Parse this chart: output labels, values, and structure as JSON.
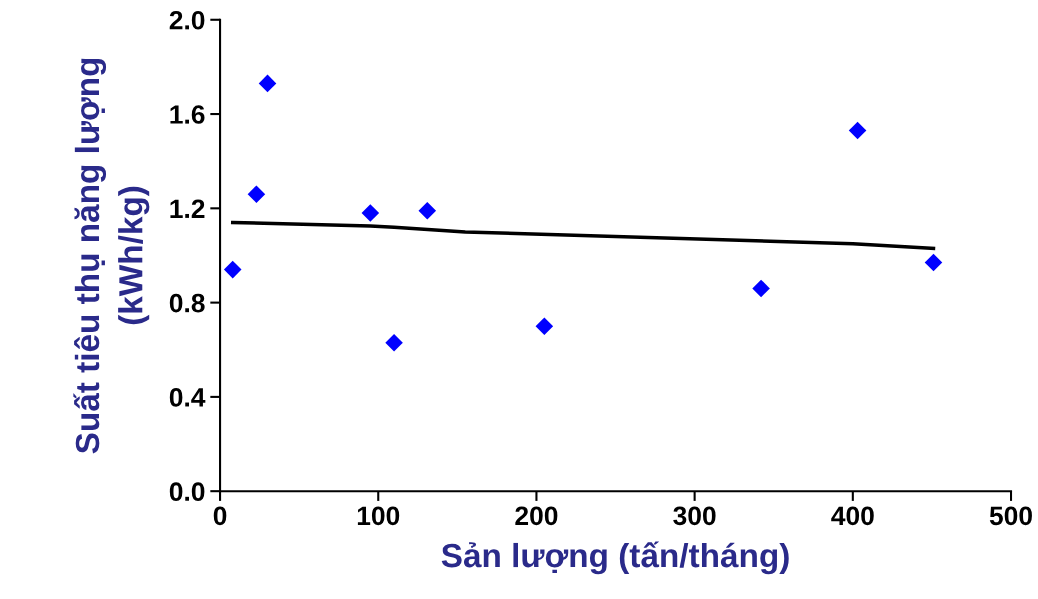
{
  "chart_data": {
    "type": "scatter",
    "xlabel": "Sản lượng (tấn/tháng)",
    "ylabel": "Suất tiêu thụ năng lượng\n(kWh/kg)",
    "series": [
      {
        "color": "#0000ff",
        "marker": "diamond",
        "x": [
          8,
          23,
          30,
          95,
          110,
          131,
          205,
          342,
          403,
          451
        ],
        "values": [
          0.94,
          1.26,
          1.73,
          1.18,
          0.63,
          1.19,
          0.7,
          0.86,
          1.53,
          0.97
        ]
      },
      {
        "type": "line",
        "color": "#000000",
        "marker": "none",
        "line_style": "solid",
        "x": [
          8,
          95,
          110,
          155,
          400,
          451
        ],
        "values": [
          1.14,
          1.125,
          1.12,
          1.1,
          1.05,
          1.03
        ]
      }
    ],
    "xlim": [
      0,
      500
    ],
    "xticks": [
      0,
      100,
      200,
      300,
      400,
      500
    ],
    "ylim": [
      0,
      2
    ],
    "yticks": [
      {
        "value": 0,
        "label": "0.0"
      },
      {
        "value": 0.4,
        "label": "0.4"
      },
      {
        "value": 0.8,
        "label": "0.8"
      },
      {
        "value": 1.2,
        "label": "1.2"
      },
      {
        "value": 1.6,
        "label": "1.6"
      },
      {
        "value": 2,
        "label": "2.0"
      }
    ],
    "grid": false,
    "legend": false
  }
}
